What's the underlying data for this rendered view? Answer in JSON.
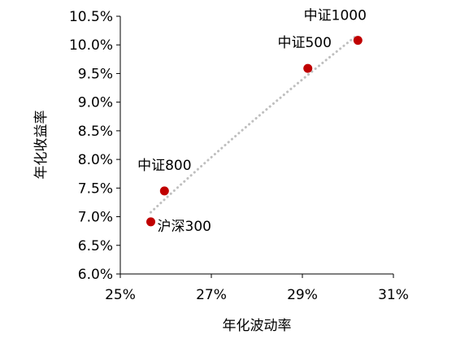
{
  "chart_data": {
    "type": "scatter",
    "title": "",
    "xlabel": "年化波动率",
    "ylabel": "年化收益率",
    "xlim": [
      25,
      31
    ],
    "ylim": [
      6.0,
      10.5
    ],
    "x_ticks": [
      {
        "value": 25,
        "label": "25%"
      },
      {
        "value": 27,
        "label": "27%"
      },
      {
        "value": 29,
        "label": "29%"
      },
      {
        "value": 31,
        "label": "31%"
      }
    ],
    "y_ticks": [
      {
        "value": 6.0,
        "label": "6.0%"
      },
      {
        "value": 6.5,
        "label": "6.5%"
      },
      {
        "value": 7.0,
        "label": "7.0%"
      },
      {
        "value": 7.5,
        "label": "7.5%"
      },
      {
        "value": 8.0,
        "label": "8.0%"
      },
      {
        "value": 8.5,
        "label": "8.5%"
      },
      {
        "value": 9.0,
        "label": "9.0%"
      },
      {
        "value": 9.5,
        "label": "9.5%"
      },
      {
        "value": 10.0,
        "label": "10.0%"
      },
      {
        "value": 10.5,
        "label": "10.5%"
      }
    ],
    "grid": false,
    "legend": "none",
    "colors": {
      "point": "#C00000",
      "trendline": "#BFBFBF",
      "axis": "#000000"
    },
    "points": [
      {
        "label": "沪深300",
        "x": 25.67,
        "y": 6.91
      },
      {
        "label": "中证800",
        "x": 25.97,
        "y": 7.45
      },
      {
        "label": "中证500",
        "x": 29.12,
        "y": 9.59
      },
      {
        "label": "中证1000",
        "x": 30.22,
        "y": 10.08
      }
    ],
    "trendline": {
      "type": "log",
      "style": "dotted"
    }
  }
}
